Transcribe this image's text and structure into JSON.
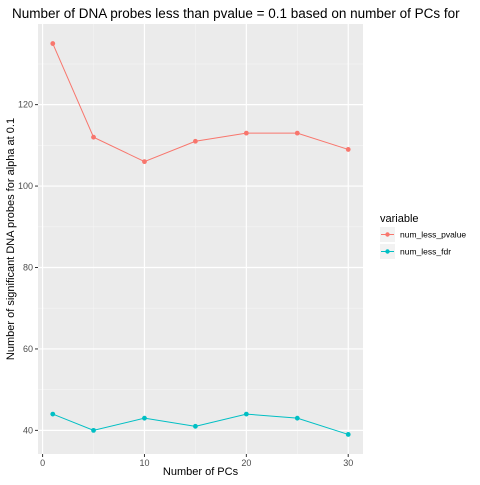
{
  "chart_data": {
    "type": "line",
    "title": "Number of DNA probes less than pvalue = 0.1 based on number of PCs for",
    "xlabel": "Number of PCs",
    "ylabel": "Number of significant DNA probes for alpha at 0.1",
    "x": [
      1,
      5,
      10,
      15,
      20,
      25,
      30
    ],
    "xlim": [
      -0.45,
      31.45
    ],
    "ylim": [
      34.2,
      139.8
    ],
    "xticks": [
      0,
      10,
      20,
      30
    ],
    "yticks": [
      40,
      60,
      80,
      100,
      120
    ],
    "grid": true,
    "legend": {
      "title": "variable",
      "position": "right"
    },
    "series": [
      {
        "name": "num_less_pvalue",
        "color": "#F8766D",
        "values": [
          135,
          112,
          106,
          111,
          113,
          113,
          109
        ]
      },
      {
        "name": "num_less_fdr",
        "color": "#00BFC4",
        "values": [
          44,
          40,
          43,
          41,
          44,
          43,
          39
        ]
      }
    ]
  }
}
